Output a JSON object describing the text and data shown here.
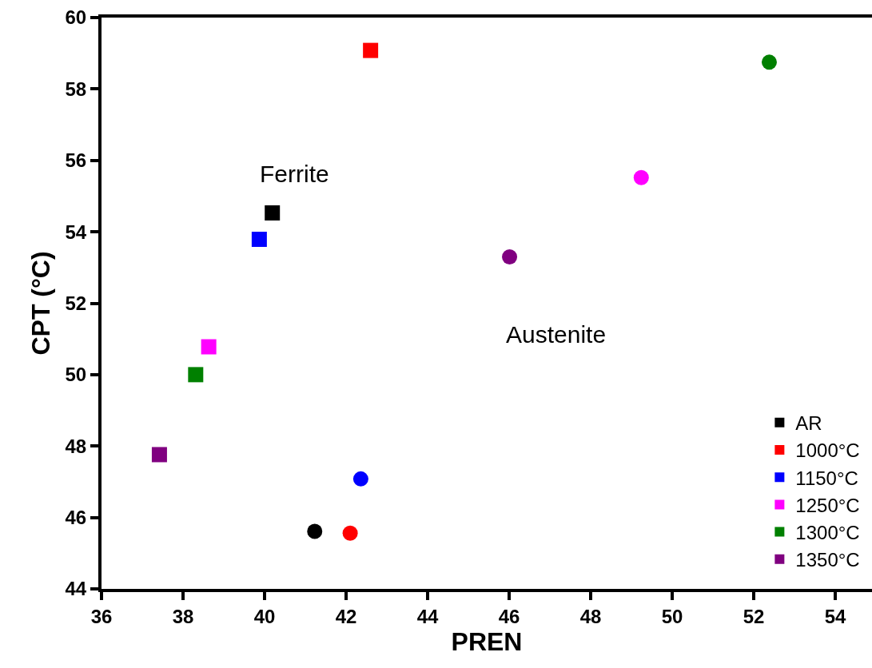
{
  "chart_data": {
    "type": "scatter",
    "xlabel": "PREN",
    "ylabel": "CPT (°C)",
    "xlim": [
      36,
      54.9
    ],
    "xticks": [
      36,
      38,
      40,
      42,
      44,
      46,
      48,
      50,
      52,
      54
    ],
    "ylim": [
      44,
      60
    ],
    "yticks": [
      44,
      46,
      48,
      50,
      52,
      54,
      56,
      58,
      60
    ],
    "legend": "bottom right",
    "annotations": [
      "Ferrite",
      "Austenite"
    ],
    "series": [
      {
        "name": "AR",
        "color": "#000000",
        "marker": "square",
        "x": [
          40.19
        ],
        "values": [
          54.53
        ]
      },
      {
        "name": "1000°C",
        "color": "#ff0000",
        "marker": "square",
        "x": [
          42.6
        ],
        "values": [
          59.08
        ]
      },
      {
        "name": "1150°C",
        "color": "#0000ff",
        "marker": "square",
        "x": [
          39.87
        ],
        "values": [
          53.79
        ]
      },
      {
        "name": "1250°C",
        "color": "#ff00ff",
        "marker": "square",
        "x": [
          38.63
        ],
        "values": [
          50.78
        ]
      },
      {
        "name": "1300°C",
        "color": "#008000",
        "marker": "square",
        "x": [
          38.31
        ],
        "values": [
          50.0
        ]
      },
      {
        "name": "1350°C",
        "color": "#800080",
        "marker": "square",
        "x": [
          37.42
        ],
        "values": [
          47.76
        ]
      },
      {
        "color": "#000000",
        "marker": "circle",
        "x": [
          41.23
        ],
        "values": [
          45.61
        ]
      },
      {
        "color": "#ff0000",
        "marker": "circle",
        "x": [
          42.1
        ],
        "values": [
          45.56
        ]
      },
      {
        "color": "#0000ff",
        "marker": "circle",
        "x": [
          42.36
        ],
        "values": [
          47.08
        ]
      },
      {
        "color": "#ff00ff",
        "marker": "circle",
        "x": [
          49.24
        ],
        "values": [
          55.52
        ]
      },
      {
        "color": "#008000",
        "marker": "circle",
        "x": [
          52.38
        ],
        "values": [
          58.75
        ]
      },
      {
        "color": "#800080",
        "marker": "circle",
        "x": [
          46.01
        ],
        "values": [
          53.3
        ]
      }
    ]
  }
}
